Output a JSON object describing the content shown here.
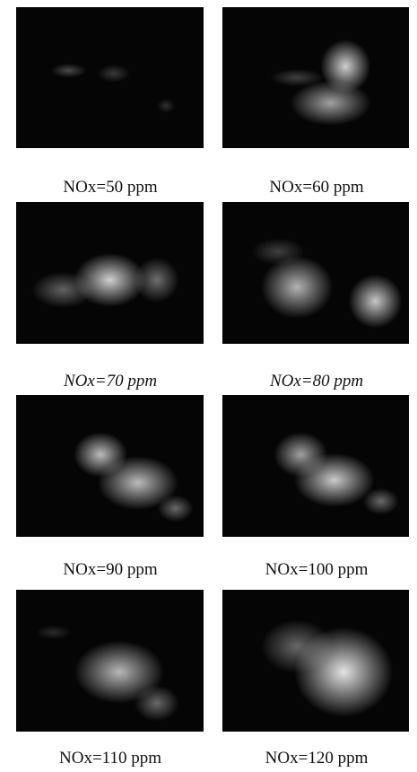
{
  "panels": [
    {
      "caption": "NOx=50 ppm"
    },
    {
      "caption": "NOx=60 ppm"
    },
    {
      "caption": "NOx=70 ppm"
    },
    {
      "caption": "NOx=80 ppm"
    },
    {
      "caption": "NOx=90 ppm"
    },
    {
      "caption": "NOx=100 ppm"
    },
    {
      "caption": "NOx=110 ppm"
    },
    {
      "caption": "NOx=120 ppm"
    }
  ]
}
